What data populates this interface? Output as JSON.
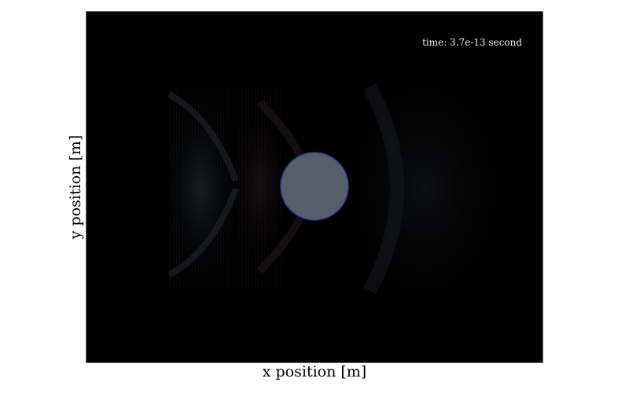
{
  "chart_data": {
    "type": "heatmap",
    "xlabel": "x position [m]",
    "ylabel": "y position [m]",
    "annotation": "time: 3.7e-13 second",
    "ticks_visible": false,
    "grid": false,
    "colorbar": false,
    "colors": {
      "background": "#000000",
      "field_faint": "#2a2f3a",
      "field_red_tint": "#3a1e24",
      "sphere_fill": "#55616a",
      "sphere_edge": "#2b3a8f",
      "frame": "#000000"
    }
  }
}
